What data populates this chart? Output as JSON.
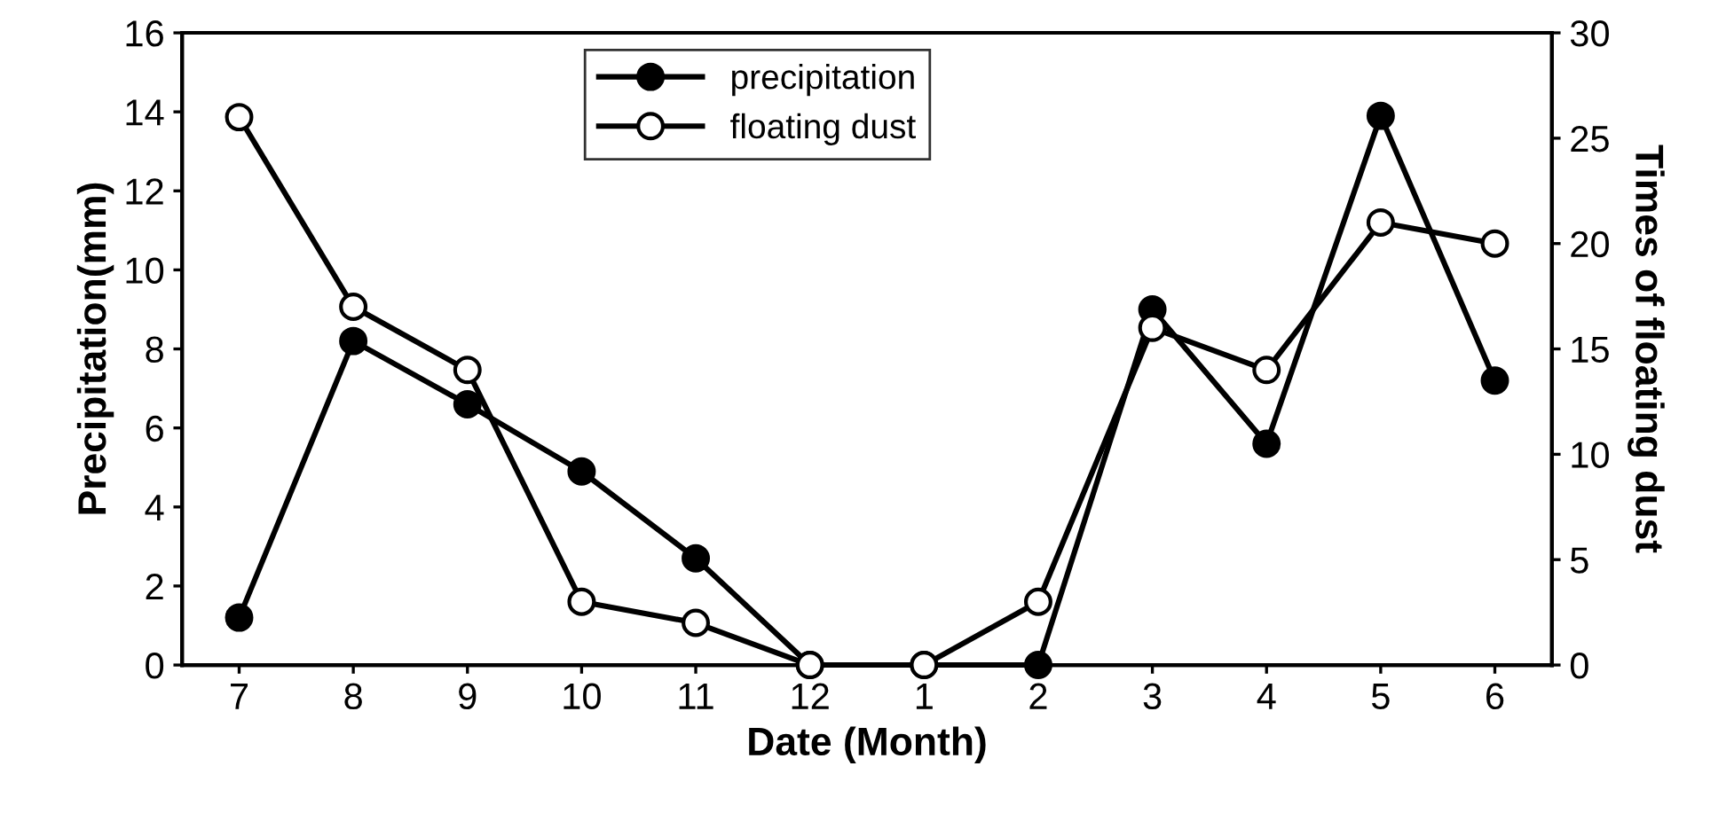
{
  "chart_data": {
    "type": "line",
    "xlabel": "Date (Month)",
    "ylabel": "Precipitation(mm)",
    "y2label": "Times of floating dust",
    "categories": [
      "7",
      "8",
      "9",
      "10",
      "11",
      "12",
      "1",
      "2",
      "3",
      "4",
      "5",
      "6"
    ],
    "series": [
      {
        "name": "precipitation",
        "color": "#000000",
        "values": [
          1.2,
          8.2,
          6.6,
          4.9,
          2.7,
          0,
          0,
          0,
          9.0,
          5.6,
          13.9,
          7.2
        ]
      },
      {
        "name": "floating dust",
        "color": "#000000",
        "axis": "y2",
        "values": [
          26,
          17,
          14,
          3,
          2,
          0,
          0,
          3,
          16,
          14,
          21,
          20
        ]
      }
    ],
    "ylim": [
      0,
      16
    ],
    "yticks": [
      0,
      2,
      4,
      6,
      8,
      10,
      12,
      14,
      16
    ],
    "y2lim": [
      0,
      30
    ],
    "y2ticks": [
      0,
      5,
      10,
      15,
      20,
      25,
      30
    ],
    "legend": "top",
    "marker": "circle",
    "line_style": "solid",
    "grid": false
  }
}
